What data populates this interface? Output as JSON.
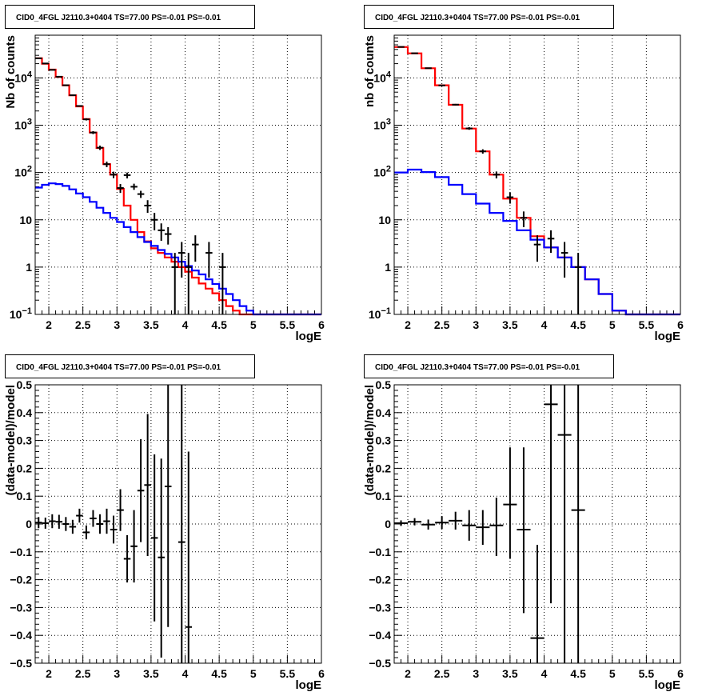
{
  "pads": [
    {
      "title": "CID0_4FGL J2110.3+0404 TS=77.00 PS=-0.01 PS=-0.01",
      "xlabel": "logE",
      "ylabel": "Nb of counts",
      "chart_data": {
        "type": "line",
        "xlim": [
          1.8,
          6.0
        ],
        "ylim": [
          0.1,
          80000
        ],
        "yscale": "log",
        "grid": true,
        "x_ticks": [
          "2",
          "2.5",
          "3",
          "3.5",
          "4",
          "4.5",
          "5",
          "5.5",
          "6"
        ],
        "y_ticks": [
          {
            "v": 0.1,
            "label": "10",
            "sup": "−1"
          },
          {
            "v": 1,
            "label": "1",
            "sup": ""
          },
          {
            "v": 10,
            "label": "10",
            "sup": ""
          },
          {
            "v": 100,
            "label": "10",
            "sup": "2"
          },
          {
            "v": 1000,
            "label": "10",
            "sup": "3"
          },
          {
            "v": 10000,
            "label": "10",
            "sup": "4"
          }
        ],
        "bin_edges": [
          1.8,
          1.9,
          2.0,
          2.1,
          2.2,
          2.3,
          2.4,
          2.5,
          2.6,
          2.7,
          2.8,
          2.9,
          3.0,
          3.1,
          3.2,
          3.3,
          3.4,
          3.5,
          3.6,
          3.7,
          3.8,
          3.9,
          4.0,
          4.1,
          4.2,
          4.3,
          4.4,
          4.5,
          4.6,
          4.7,
          4.8,
          4.9,
          5.0,
          5.1,
          5.2,
          5.3,
          5.4,
          5.5,
          5.6,
          5.7,
          5.8,
          5.9,
          6.0
        ],
        "series": [
          {
            "color": "#ff0000",
            "values": [
              26000,
              20000,
              15000,
              10500,
              7000,
              4300,
              2500,
              1350,
              700,
              330,
              150,
              90,
              45,
              20,
              10,
              5.5,
              3.5,
              2.5,
              2.0,
              1.6,
              1.3,
              1.0,
              0.8,
              0.6,
              0.45,
              0.35,
              0.28,
              0.2,
              0.15,
              0.12,
              0.1,
              0.1,
              0.1,
              0.1,
              0.1,
              0.1,
              0.1,
              0.1,
              0.1,
              0.1,
              0.1,
              0.1
            ]
          },
          {
            "color": "#0000ff",
            "values": [
              48,
              55,
              59,
              57,
              52,
              44,
              36,
              30,
              24,
              18,
              14,
              11,
              9,
              7,
              5.5,
              4.3,
              3.4,
              2.8,
              2.3,
              1.9,
              1.6,
              1.3,
              1.05,
              0.85,
              0.7,
              0.55,
              0.44,
              0.35,
              0.27,
              0.2,
              0.15,
              0.12,
              0.1,
              0.1,
              0.1,
              0.1,
              0.1,
              0.1,
              0.1,
              0.1,
              0.1,
              0.1
            ]
          }
        ],
        "points": [
          {
            "x": 1.85,
            "y": 26000,
            "ylo": 25700,
            "yhi": 26300
          },
          {
            "x": 1.95,
            "y": 20200,
            "ylo": 19900,
            "yhi": 20500
          },
          {
            "x": 2.05,
            "y": 14800,
            "ylo": 14550,
            "yhi": 15050
          },
          {
            "x": 2.15,
            "y": 10600,
            "ylo": 10400,
            "yhi": 10800
          },
          {
            "x": 2.25,
            "y": 7000,
            "ylo": 6850,
            "yhi": 7150
          },
          {
            "x": 2.35,
            "y": 4300,
            "ylo": 4150,
            "yhi": 4450
          },
          {
            "x": 2.45,
            "y": 2550,
            "ylo": 2450,
            "yhi": 2650
          },
          {
            "x": 2.55,
            "y": 1330,
            "ylo": 1260,
            "yhi": 1400
          },
          {
            "x": 2.65,
            "y": 700,
            "ylo": 650,
            "yhi": 750
          },
          {
            "x": 2.75,
            "y": 335,
            "ylo": 300,
            "yhi": 370
          },
          {
            "x": 2.85,
            "y": 150,
            "ylo": 130,
            "yhi": 170
          },
          {
            "x": 2.95,
            "y": 90,
            "ylo": 76,
            "yhi": 104
          },
          {
            "x": 3.05,
            "y": 47,
            "ylo": 37,
            "yhi": 57
          },
          {
            "x": 3.15,
            "y": 88,
            "ylo": 75,
            "yhi": 100
          },
          {
            "x": 3.25,
            "y": 50,
            "ylo": 43,
            "yhi": 58
          },
          {
            "x": 3.35,
            "y": 35,
            "ylo": 29,
            "yhi": 41
          },
          {
            "x": 3.45,
            "y": 20,
            "ylo": 14,
            "yhi": 26
          },
          {
            "x": 3.55,
            "y": 10,
            "ylo": 6,
            "yhi": 14
          },
          {
            "x": 3.65,
            "y": 6,
            "ylo": 3.6,
            "yhi": 8.4
          },
          {
            "x": 3.75,
            "y": 5,
            "ylo": 3,
            "yhi": 7
          },
          {
            "x": 3.85,
            "y": 1,
            "ylo": 0.1,
            "yhi": 2
          },
          {
            "x": 3.95,
            "y": 2,
            "ylo": 0.6,
            "yhi": 3.4
          },
          {
            "x": 4.05,
            "y": 1,
            "ylo": 0.1,
            "yhi": 2
          },
          {
            "x": 4.15,
            "y": 3,
            "ylo": 1.3,
            "yhi": 4.7
          },
          {
            "x": 4.35,
            "y": 2,
            "ylo": 0.6,
            "yhi": 3.4
          },
          {
            "x": 4.55,
            "y": 1,
            "ylo": 0.1,
            "yhi": 2
          }
        ]
      }
    },
    {
      "title": "CID0_4FGL J2110.3+0404 TS=77.00 PS=-0.01 PS=-0.01",
      "xlabel": "logE",
      "ylabel": "nb of counts",
      "chart_data": {
        "type": "line",
        "xlim": [
          1.8,
          6.0
        ],
        "ylim": [
          0.1,
          80000
        ],
        "yscale": "log",
        "grid": true,
        "x_ticks": [
          "2",
          "2.5",
          "3",
          "3.5",
          "4",
          "4.5",
          "5",
          "5.5",
          "6"
        ],
        "y_ticks": [
          {
            "v": 0.1,
            "label": "10",
            "sup": "−1"
          },
          {
            "v": 1,
            "label": "1",
            "sup": ""
          },
          {
            "v": 10,
            "label": "10",
            "sup": ""
          },
          {
            "v": 100,
            "label": "10",
            "sup": "2"
          },
          {
            "v": 1000,
            "label": "10",
            "sup": "3"
          },
          {
            "v": 10000,
            "label": "10",
            "sup": "4"
          }
        ],
        "bin_edges": [
          1.8,
          2.0,
          2.2,
          2.4,
          2.6,
          2.8,
          3.0,
          3.2,
          3.4,
          3.6,
          3.8,
          4.0,
          4.2,
          4.4,
          4.6,
          4.8,
          5.0,
          5.2,
          5.4,
          5.6,
          5.8,
          6.0
        ],
        "series": [
          {
            "color": "#ff0000",
            "values": [
              45000,
              33000,
              16000,
              7000,
              2700,
              850,
              280,
              90,
              28,
              11,
              4.5,
              2.6,
              1.6,
              1.0,
              0.55,
              0.27,
              0.12,
              0.1,
              0.1,
              0.1,
              0.1
            ]
          },
          {
            "color": "#0000ff",
            "values": [
              100,
              115,
              102,
              80,
              55,
              35,
              22,
              14,
              9.5,
              6,
              3.8,
              2.6,
              1.6,
              1.0,
              0.55,
              0.27,
              0.12,
              0.1,
              0.1,
              0.1,
              0.1
            ]
          }
        ],
        "points": [
          {
            "x": 1.9,
            "y": 45200,
            "ylo": 44800,
            "yhi": 45600
          },
          {
            "x": 2.1,
            "y": 33200,
            "ylo": 32850,
            "yhi": 33550
          },
          {
            "x": 2.3,
            "y": 16050,
            "ylo": 15800,
            "yhi": 16300
          },
          {
            "x": 2.5,
            "y": 6950,
            "ylo": 6800,
            "yhi": 7100
          },
          {
            "x": 2.7,
            "y": 2720,
            "ylo": 2620,
            "yhi": 2820
          },
          {
            "x": 2.9,
            "y": 855,
            "ylo": 800,
            "yhi": 910
          },
          {
            "x": 3.1,
            "y": 280,
            "ylo": 250,
            "yhi": 310
          },
          {
            "x": 3.3,
            "y": 90,
            "ylo": 75,
            "yhi": 105
          },
          {
            "x": 3.5,
            "y": 30,
            "ylo": 22,
            "yhi": 38
          },
          {
            "x": 3.7,
            "y": 11,
            "ylo": 7,
            "yhi": 15
          },
          {
            "x": 3.9,
            "y": 3,
            "ylo": 1.3,
            "yhi": 4.7
          },
          {
            "x": 4.1,
            "y": 4,
            "ylo": 2,
            "yhi": 6
          },
          {
            "x": 4.3,
            "y": 2,
            "ylo": 0.6,
            "yhi": 3.4
          },
          {
            "x": 4.5,
            "y": 1,
            "ylo": 0.1,
            "yhi": 2
          }
        ]
      }
    },
    {
      "title": "CID0_4FGL J2110.3+0404 TS=77.00 PS=-0.01 PS=-0.01",
      "xlabel": "logE",
      "ylabel": "(data-model)/model",
      "chart_data": {
        "type": "scatter",
        "xlim": [
          1.8,
          6.0
        ],
        "ylim": [
          -0.5,
          0.5
        ],
        "yscale": "linear",
        "grid": true,
        "x_ticks": [
          "2",
          "2.5",
          "3",
          "3.5",
          "4",
          "4.5",
          "5",
          "5.5",
          "6"
        ],
        "y_ticks": [
          {
            "v": -0.5,
            "label": "−0.5"
          },
          {
            "v": -0.4,
            "label": "−0.4"
          },
          {
            "v": -0.3,
            "label": "−0.3"
          },
          {
            "v": -0.2,
            "label": "−0.2"
          },
          {
            "v": -0.1,
            "label": "−0.1"
          },
          {
            "v": 0,
            "label": "0"
          },
          {
            "v": 0.1,
            "label": "0.1"
          },
          {
            "v": 0.2,
            "label": "0.2"
          },
          {
            "v": 0.3,
            "label": "0.3"
          },
          {
            "v": 0.4,
            "label": "0.4"
          },
          {
            "v": 0.5,
            "label": "0.5"
          }
        ],
        "xhalf": 0.05,
        "points": [
          {
            "x": 1.85,
            "y": 0.005,
            "ylo": -0.015,
            "yhi": 0.025
          },
          {
            "x": 1.95,
            "y": 0.003,
            "ylo": -0.017,
            "yhi": 0.023
          },
          {
            "x": 2.05,
            "y": 0.01,
            "ylo": -0.015,
            "yhi": 0.035
          },
          {
            "x": 2.15,
            "y": 0.008,
            "ylo": -0.017,
            "yhi": 0.033
          },
          {
            "x": 2.25,
            "y": 0.0,
            "ylo": -0.025,
            "yhi": 0.025
          },
          {
            "x": 2.35,
            "y": -0.01,
            "ylo": -0.035,
            "yhi": 0.015
          },
          {
            "x": 2.45,
            "y": 0.03,
            "ylo": 0.005,
            "yhi": 0.055
          },
          {
            "x": 2.55,
            "y": -0.03,
            "ylo": -0.055,
            "yhi": -0.005
          },
          {
            "x": 2.65,
            "y": 0.02,
            "ylo": -0.01,
            "yhi": 0.05
          },
          {
            "x": 2.75,
            "y": 0.0,
            "ylo": -0.035,
            "yhi": 0.035
          },
          {
            "x": 2.85,
            "y": 0.01,
            "ylo": -0.035,
            "yhi": 0.055
          },
          {
            "x": 2.95,
            "y": -0.02,
            "ylo": -0.07,
            "yhi": 0.03
          },
          {
            "x": 3.05,
            "y": 0.05,
            "ylo": -0.025,
            "yhi": 0.125
          },
          {
            "x": 3.15,
            "y": -0.125,
            "ylo": -0.21,
            "yhi": -0.04
          },
          {
            "x": 3.25,
            "y": -0.08,
            "ylo": -0.21,
            "yhi": 0.05
          },
          {
            "x": 3.35,
            "y": 0.12,
            "ylo": -0.065,
            "yhi": 0.305
          },
          {
            "x": 3.45,
            "y": 0.14,
            "ylo": -0.115,
            "yhi": 0.395
          },
          {
            "x": 3.55,
            "y": -0.05,
            "ylo": -0.35,
            "yhi": 0.25
          },
          {
            "x": 3.65,
            "y": -0.12,
            "ylo": -0.48,
            "yhi": 0.235
          },
          {
            "x": 3.75,
            "y": 0.135,
            "ylo": -0.37,
            "yhi": 0.5
          },
          {
            "x": 3.95,
            "y": -0.065,
            "ylo": -0.5,
            "yhi": 0.5
          },
          {
            "x": 4.05,
            "y": -0.37,
            "ylo": -0.5,
            "yhi": 0.26
          }
        ]
      }
    },
    {
      "title": "CID0_4FGL J2110.3+0404 TS=77.00 PS=-0.01 PS=-0.01",
      "xlabel": "logE",
      "ylabel": "(data-model)/model",
      "chart_data": {
        "type": "scatter",
        "xlim": [
          1.8,
          6.0
        ],
        "ylim": [
          -0.5,
          0.5
        ],
        "yscale": "linear",
        "grid": true,
        "x_ticks": [
          "2",
          "2.5",
          "3",
          "3.5",
          "4",
          "4.5",
          "5",
          "5.5",
          "6"
        ],
        "y_ticks": [
          {
            "v": -0.5,
            "label": "−0.5"
          },
          {
            "v": -0.4,
            "label": "−0.4"
          },
          {
            "v": -0.3,
            "label": "−0.3"
          },
          {
            "v": -0.2,
            "label": "−0.2"
          },
          {
            "v": -0.1,
            "label": "−0.1"
          },
          {
            "v": 0,
            "label": "0"
          },
          {
            "v": 0.1,
            "label": "0.1"
          },
          {
            "v": 0.2,
            "label": "0.2"
          },
          {
            "v": 0.3,
            "label": "0.3"
          },
          {
            "v": 0.4,
            "label": "0.4"
          },
          {
            "v": 0.5,
            "label": "0.5"
          }
        ],
        "xhalf": 0.1,
        "points": [
          {
            "x": 1.9,
            "y": 0.003,
            "ylo": -0.007,
            "yhi": 0.013
          },
          {
            "x": 2.1,
            "y": 0.008,
            "ylo": -0.005,
            "yhi": 0.021
          },
          {
            "x": 2.3,
            "y": -0.002,
            "ylo": -0.02,
            "yhi": 0.016
          },
          {
            "x": 2.5,
            "y": 0.005,
            "ylo": -0.018,
            "yhi": 0.028
          },
          {
            "x": 2.7,
            "y": 0.012,
            "ylo": -0.02,
            "yhi": 0.044
          },
          {
            "x": 2.9,
            "y": -0.005,
            "ylo": -0.06,
            "yhi": 0.05
          },
          {
            "x": 3.1,
            "y": -0.012,
            "ylo": -0.075,
            "yhi": 0.05
          },
          {
            "x": 3.3,
            "y": -0.005,
            "ylo": -0.115,
            "yhi": 0.095
          },
          {
            "x": 3.5,
            "y": 0.07,
            "ylo": -0.125,
            "yhi": 0.275
          },
          {
            "x": 3.7,
            "y": -0.02,
            "ylo": -0.32,
            "yhi": 0.275
          },
          {
            "x": 3.9,
            "y": -0.41,
            "ylo": -0.5,
            "yhi": -0.075
          },
          {
            "x": 4.1,
            "y": 0.43,
            "ylo": -0.285,
            "yhi": 0.5
          },
          {
            "x": 4.3,
            "y": 0.32,
            "ylo": -0.5,
            "yhi": 0.5
          },
          {
            "x": 4.5,
            "y": 0.05,
            "ylo": -0.5,
            "yhi": 0.5
          }
        ]
      }
    }
  ]
}
